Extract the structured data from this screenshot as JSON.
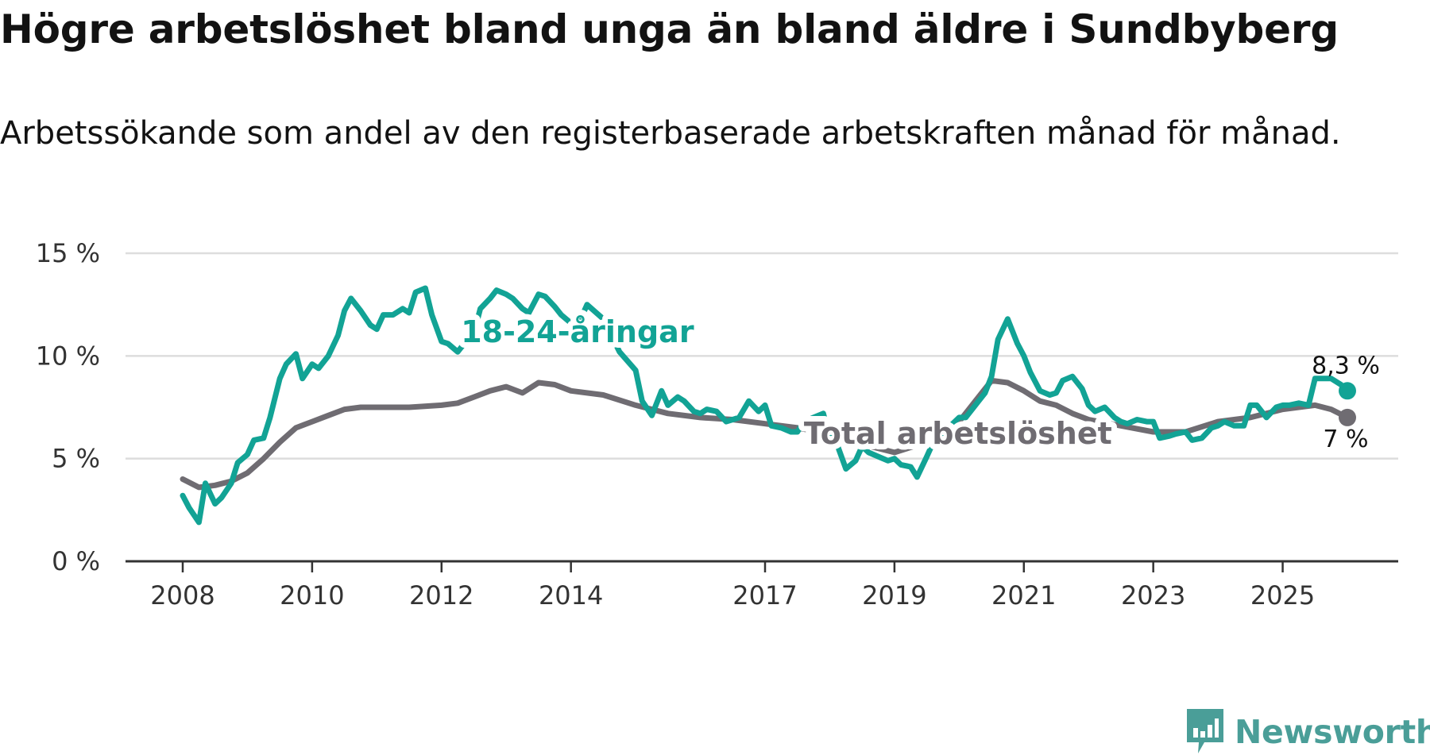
{
  "header": {
    "title": "Högre arbetslöshet bland unga än bland äldre i Sundbyberg",
    "subtitle": "Arbetssökande som andel av den registerbaserade arbetskraften månad för månad."
  },
  "brand": {
    "name": "Newsworthy",
    "color": "#4a9e98"
  },
  "colors": {
    "youth": "#12a395",
    "total": "#6f6c72",
    "grid": "#dddddd",
    "axis": "#333333"
  },
  "chart_data": {
    "type": "line",
    "title": "Högre arbetslöshet bland unga än bland äldre i Sundbyberg",
    "subtitle": "Arbetssökande som andel av den registerbaserade arbetskraften månad för månad.",
    "xlabel": "",
    "ylabel": "",
    "ylim": [
      0,
      15
    ],
    "xlim": [
      2008,
      2026.8
    ],
    "yticks": [
      0,
      5,
      10,
      15
    ],
    "ytick_labels": [
      "0 %",
      "5 %",
      "10 %",
      "15 %"
    ],
    "xticks": [
      2008,
      2010,
      2012,
      2014,
      2017,
      2019,
      2021,
      2023,
      2025
    ],
    "xtick_labels": [
      "2008",
      "2010",
      "2012",
      "2014",
      "2017",
      "2019",
      "2021",
      "2023",
      "2025"
    ],
    "grid": true,
    "series": [
      {
        "name": "Total arbetslöshet",
        "label": "Total arbetslöshet",
        "color": "#6f6c72",
        "end_label": "7 %",
        "x": [
          2008.0,
          2008.25,
          2008.5,
          2008.75,
          2009.0,
          2009.25,
          2009.5,
          2009.75,
          2010.0,
          2010.25,
          2010.5,
          2010.75,
          2011.0,
          2011.5,
          2012.0,
          2012.25,
          2012.5,
          2012.75,
          2013.0,
          2013.25,
          2013.5,
          2013.75,
          2014.0,
          2014.5,
          2015.0,
          2015.5,
          2016.0,
          2016.5,
          2017.0,
          2017.5,
          2018.0,
          2018.5,
          2019.0,
          2019.5,
          2020.0,
          2020.25,
          2020.5,
          2020.75,
          2021.0,
          2021.25,
          2021.5,
          2021.75,
          2022.0,
          2022.5,
          2023.0,
          2023.5,
          2024.0,
          2024.5,
          2025.0,
          2025.25,
          2025.5,
          2025.75,
          2026.0
        ],
        "y": [
          4.0,
          3.6,
          3.7,
          3.9,
          4.3,
          5.0,
          5.8,
          6.5,
          6.8,
          7.1,
          7.4,
          7.5,
          7.5,
          7.5,
          7.6,
          7.7,
          8.0,
          8.3,
          8.5,
          8.2,
          8.7,
          8.6,
          8.3,
          8.1,
          7.6,
          7.2,
          7.0,
          6.9,
          6.7,
          6.5,
          6.2,
          5.7,
          5.3,
          5.8,
          6.8,
          7.8,
          8.8,
          8.7,
          8.3,
          7.8,
          7.6,
          7.2,
          6.9,
          6.6,
          6.3,
          6.3,
          6.8,
          7.0,
          7.4,
          7.5,
          7.6,
          7.4,
          7.0
        ]
      },
      {
        "name": "18-24-åringar",
        "label": "18-24-åringar",
        "color": "#12a395",
        "end_label": "8,3 %",
        "x": [
          2008.0,
          2008.1,
          2008.25,
          2008.35,
          2008.5,
          2008.6,
          2008.75,
          2008.85,
          2009.0,
          2009.1,
          2009.25,
          2009.35,
          2009.5,
          2009.6,
          2009.75,
          2009.85,
          2010.0,
          2010.1,
          2010.25,
          2010.4,
          2010.5,
          2010.6,
          2010.75,
          2010.9,
          2011.0,
          2011.1,
          2011.25,
          2011.4,
          2011.5,
          2011.6,
          2011.75,
          2011.85,
          2012.0,
          2012.1,
          2012.25,
          2012.35,
          2012.5,
          2012.6,
          2012.75,
          2012.85,
          2013.0,
          2013.1,
          2013.25,
          2013.35,
          2013.5,
          2013.6,
          2013.75,
          2013.85,
          2014.0,
          2014.15,
          2014.25,
          2014.5,
          2014.75,
          2015.0,
          2015.1,
          2015.25,
          2015.4,
          2015.5,
          2015.65,
          2015.75,
          2015.9,
          2016.0,
          2016.1,
          2016.25,
          2016.4,
          2016.5,
          2016.6,
          2016.75,
          2016.9,
          2017.0,
          2017.1,
          2017.25,
          2017.4,
          2017.5,
          2017.6,
          2017.75,
          2017.9,
          2018.0,
          2018.1,
          2018.25,
          2018.4,
          2018.5,
          2018.6,
          2018.75,
          2018.9,
          2019.0,
          2019.1,
          2019.25,
          2019.35,
          2019.5,
          2019.6,
          2019.75,
          2019.9,
          2020.0,
          2020.1,
          2020.25,
          2020.4,
          2020.5,
          2020.6,
          2020.75,
          2020.9,
          2021.0,
          2021.1,
          2021.25,
          2021.4,
          2021.5,
          2021.6,
          2021.75,
          2021.9,
          2022.0,
          2022.1,
          2022.25,
          2022.4,
          2022.5,
          2022.6,
          2022.75,
          2022.9,
          2023.0,
          2023.1,
          2023.25,
          2023.35,
          2023.5,
          2023.6,
          2023.75,
          2023.9,
          2024.0,
          2024.1,
          2024.25,
          2024.4,
          2024.5,
          2024.6,
          2024.75,
          2024.9,
          2025.0,
          2025.1,
          2025.25,
          2025.4,
          2025.5,
          2025.6,
          2025.75,
          2025.9,
          2026.0
        ],
        "y": [
          3.2,
          2.6,
          1.9,
          3.8,
          2.8,
          3.1,
          3.8,
          4.8,
          5.2,
          5.9,
          6.0,
          7.0,
          8.9,
          9.6,
          10.1,
          8.9,
          9.6,
          9.4,
          10.0,
          11.0,
          12.2,
          12.8,
          12.2,
          11.5,
          11.3,
          12.0,
          12.0,
          12.3,
          12.1,
          13.1,
          13.3,
          12.0,
          10.7,
          10.6,
          10.2,
          10.6,
          11.1,
          12.3,
          12.8,
          13.2,
          13.0,
          12.8,
          12.3,
          12.1,
          13.0,
          12.9,
          12.4,
          12.0,
          11.6,
          11.8,
          12.5,
          11.8,
          10.2,
          9.3,
          7.8,
          7.1,
          8.3,
          7.6,
          8.0,
          7.8,
          7.3,
          7.2,
          7.4,
          7.3,
          6.8,
          6.9,
          7.0,
          7.8,
          7.3,
          7.6,
          6.6,
          6.5,
          6.3,
          6.3,
          6.8,
          7.0,
          7.2,
          6.0,
          5.8,
          4.5,
          4.9,
          5.6,
          5.3,
          5.1,
          4.9,
          5.0,
          4.7,
          4.6,
          4.1,
          5.1,
          5.8,
          6.3,
          6.7,
          7.0,
          7.0,
          7.6,
          8.2,
          9.0,
          10.8,
          11.8,
          10.6,
          10.0,
          9.2,
          8.3,
          8.1,
          8.2,
          8.8,
          9.0,
          8.4,
          7.6,
          7.3,
          7.5,
          7.0,
          6.8,
          6.7,
          6.9,
          6.8,
          6.8,
          6.0,
          6.1,
          6.2,
          6.3,
          5.9,
          6.0,
          6.5,
          6.6,
          6.8,
          6.6,
          6.6,
          7.6,
          7.6,
          7.0,
          7.5,
          7.6,
          7.6,
          7.7,
          7.6,
          8.9,
          8.9,
          8.9,
          8.6,
          8.3
        ]
      }
    ]
  }
}
